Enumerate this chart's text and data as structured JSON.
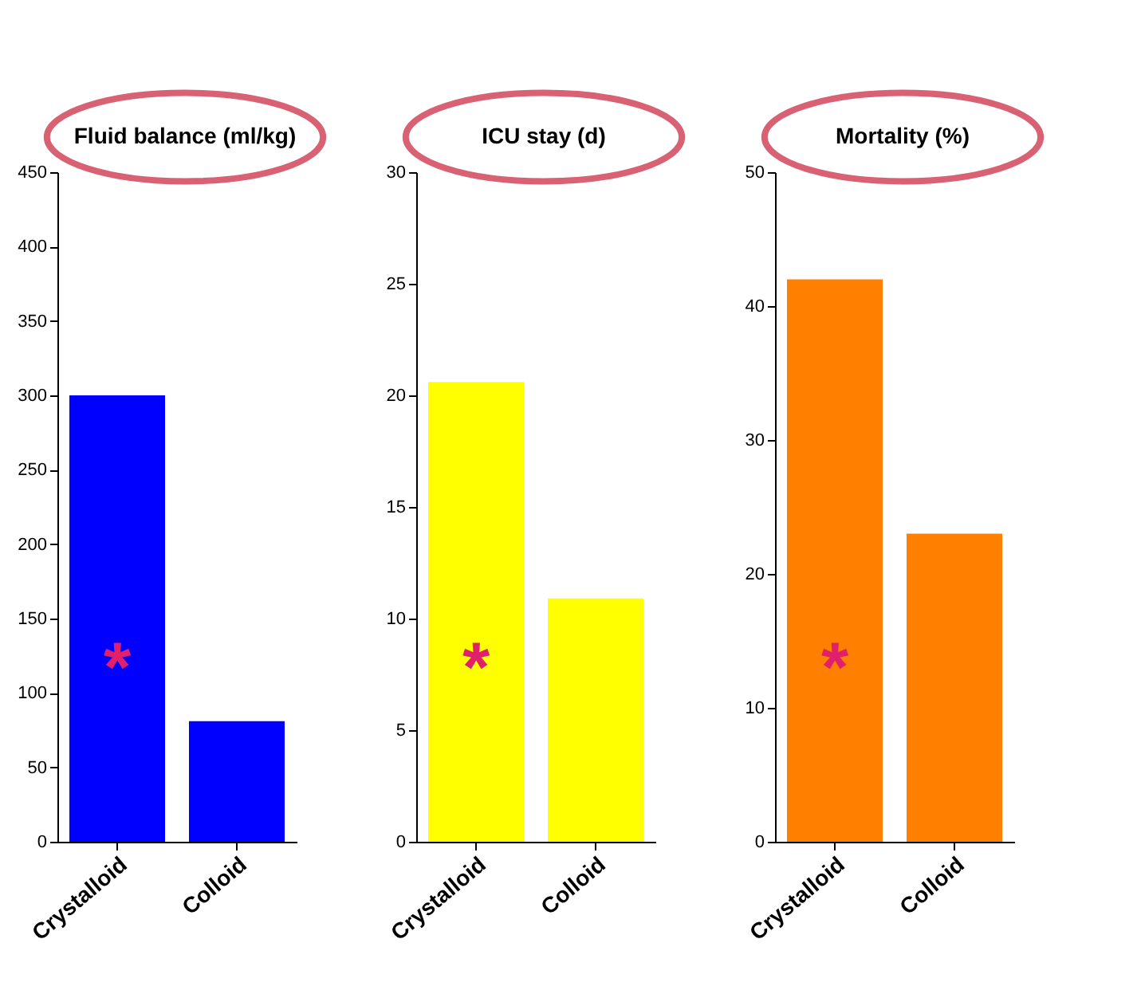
{
  "chart_data": [
    {
      "type": "bar",
      "title": "Fluid balance (ml/kg)",
      "categories": [
        "Crystalloid",
        "Colloid"
      ],
      "values": [
        300,
        81
      ],
      "color": "#0000ff",
      "ylim": [
        0,
        450
      ],
      "yticks": [
        0,
        50,
        100,
        150,
        200,
        250,
        300,
        350,
        400,
        450
      ],
      "annotations": [
        "*"
      ]
    },
    {
      "type": "bar",
      "title": "ICU stay (d)",
      "categories": [
        "Crystalloid",
        "Colloid"
      ],
      "values": [
        20.6,
        10.9
      ],
      "color": "#ffff00",
      "ylim": [
        0,
        30
      ],
      "yticks": [
        0,
        5,
        10,
        15,
        20,
        25,
        30
      ],
      "annotations": [
        "*"
      ]
    },
    {
      "type": "bar",
      "title": "Mortality (%)",
      "categories": [
        "Crystalloid",
        "Colloid"
      ],
      "values": [
        42,
        23
      ],
      "color": "#ff8000",
      "ylim": [
        0,
        50
      ],
      "yticks": [
        0,
        10,
        20,
        30,
        40,
        50
      ],
      "annotations": [
        "*"
      ]
    }
  ]
}
